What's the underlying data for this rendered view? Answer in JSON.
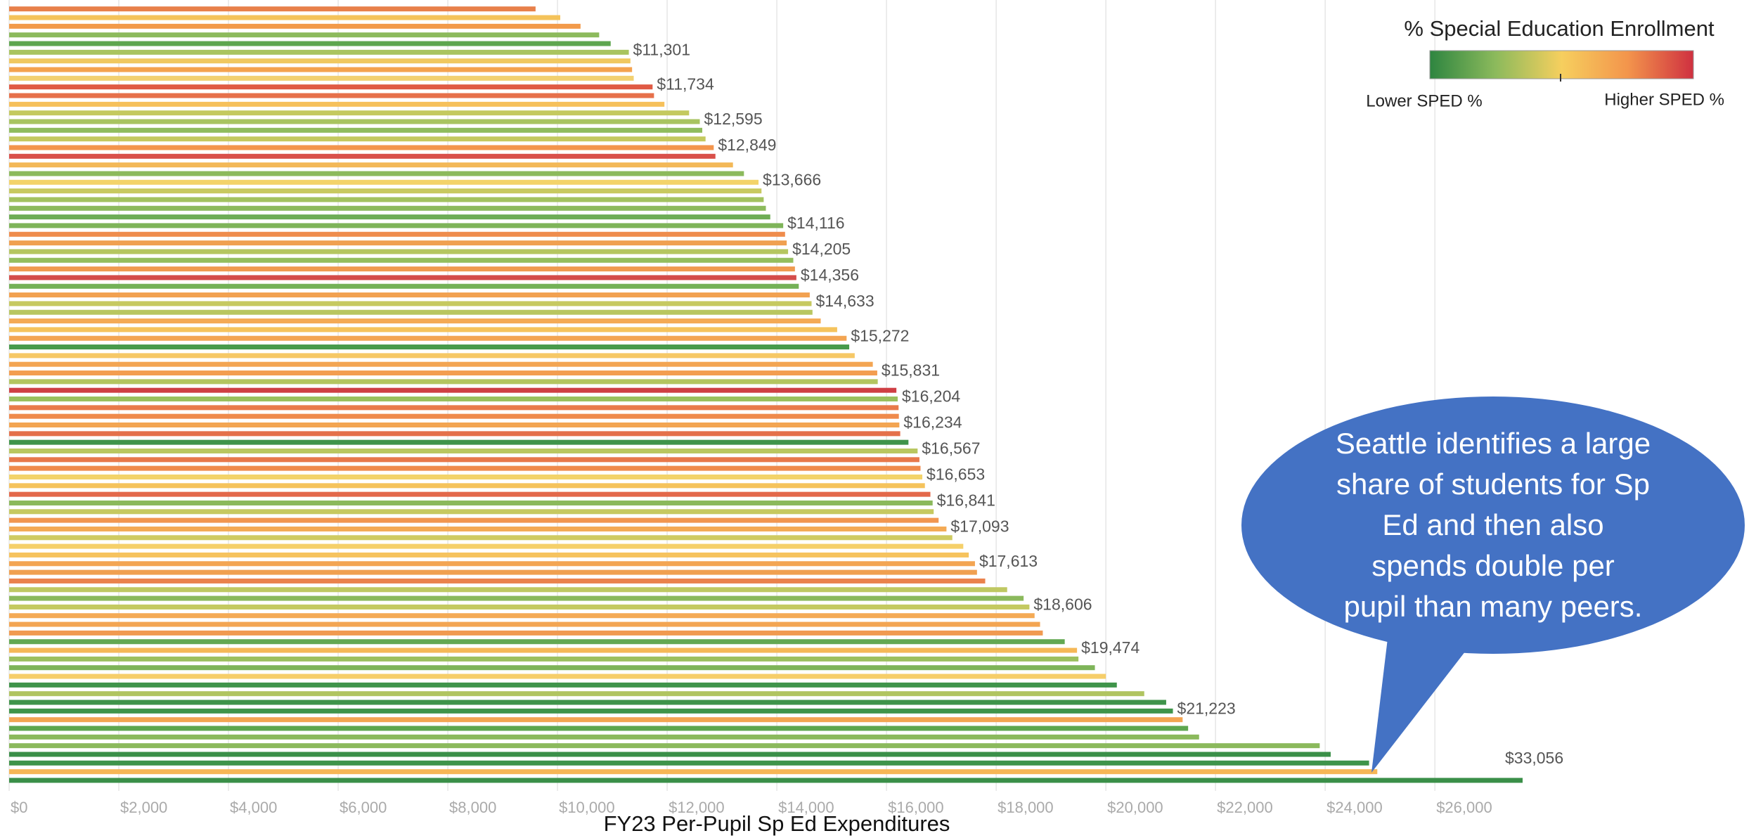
{
  "chart_data": {
    "type": "barh",
    "xlabel": "FY23 Per-Pupil Sp Ed Expenditures",
    "categories": [
      null,
      null,
      null,
      null,
      null,
      null,
      null,
      null,
      null,
      null,
      null,
      null,
      null,
      null,
      null,
      null,
      null,
      null,
      null,
      null,
      null,
      null,
      null,
      null,
      null,
      null,
      null,
      null,
      null,
      null,
      null,
      null,
      null,
      null,
      null,
      null,
      null,
      null,
      null,
      null,
      null,
      null,
      null,
      null,
      null,
      null,
      null,
      null,
      null,
      null,
      null,
      null,
      null,
      null,
      null,
      null,
      null,
      null,
      null,
      null,
      null,
      null,
      null,
      null,
      null,
      null,
      null,
      null,
      null,
      null,
      null,
      null,
      null,
      null,
      null,
      null,
      null,
      null,
      null,
      null,
      null,
      null,
      null,
      null,
      null,
      null,
      null,
      null,
      null,
      null
    ],
    "values": [
      9600,
      10050,
      10420,
      10760,
      10970,
      11301,
      11330,
      11360,
      11390,
      11734,
      11760,
      11950,
      12400,
      12595,
      12640,
      12700,
      12849,
      12880,
      13200,
      13400,
      13666,
      13720,
      13760,
      13800,
      13880,
      14116,
      14150,
      14180,
      14205,
      14300,
      14330,
      14356,
      14400,
      14600,
      14633,
      14650,
      14800,
      15100,
      15272,
      15320,
      15420,
      15750,
      15831,
      15840,
      16180,
      16204,
      16220,
      16225,
      16234,
      16250,
      16400,
      16567,
      16600,
      16620,
      16653,
      16700,
      16800,
      16841,
      16860,
      16950,
      17093,
      17200,
      17400,
      17500,
      17613,
      17650,
      17800,
      18200,
      18500,
      18606,
      18700,
      18800,
      18850,
      19250,
      19474,
      19500,
      19800,
      20000,
      20200,
      20700,
      21100,
      21223,
      21400,
      21500,
      21700,
      23900,
      24100,
      24800,
      24950,
      33056
    ],
    "value_labels": [
      null,
      null,
      null,
      null,
      null,
      "$11,301",
      null,
      null,
      null,
      "$11,734",
      null,
      null,
      null,
      "$12,595",
      null,
      null,
      "$12,849",
      null,
      null,
      null,
      "$13,666",
      null,
      null,
      null,
      null,
      "$14,116",
      null,
      null,
      "$14,205",
      null,
      null,
      "$14,356",
      null,
      null,
      "$14,633",
      null,
      null,
      null,
      "$15,272",
      null,
      null,
      null,
      "$15,831",
      null,
      null,
      "$16,204",
      null,
      null,
      "$16,234",
      null,
      null,
      "$16,567",
      null,
      null,
      "$16,653",
      null,
      null,
      "$16,841",
      null,
      null,
      "$17,093",
      null,
      null,
      null,
      "$17,613",
      null,
      null,
      null,
      null,
      "$18,606",
      null,
      null,
      null,
      null,
      "$19,474",
      null,
      null,
      null,
      null,
      null,
      null,
      "$21,223",
      null,
      null,
      null,
      null,
      null,
      null,
      null,
      "$33,056"
    ],
    "colors": [
      "#e8804a",
      "#f4c35a",
      "#f29a4a",
      "#8cba5c",
      "#5ea64f",
      "#a9c45f",
      "#f0c860",
      "#f4a24e",
      "#f2d070",
      "#e05a44",
      "#e6704a",
      "#f6c05a",
      "#c4c95f",
      "#a8c460",
      "#8fbc5d",
      "#c4c95f",
      "#f3954c",
      "#d9504a",
      "#f3b857",
      "#8cba5c",
      "#f3d36a",
      "#c8c960",
      "#a3c25f",
      "#8cba5c",
      "#6ead55",
      "#7eb459",
      "#ef8c4c",
      "#f0a050",
      "#b5c660",
      "#94be5e",
      "#f09b50",
      "#d44c4a",
      "#74b157",
      "#f2a150",
      "#c6c960",
      "#b8c660",
      "#f4aa55",
      "#f5c35c",
      "#f3a552",
      "#479a4b",
      "#f6c866",
      "#f3a552",
      "#f39d50",
      "#b3c560",
      "#cf3f44",
      "#9ac05e",
      "#e87a4a",
      "#ef8a4c",
      "#f3a552",
      "#e4704a",
      "#3f944a",
      "#b9c760",
      "#e7784a",
      "#ef8a4c",
      "#f3d36a",
      "#f5c35c",
      "#e3684a",
      "#8bb95c",
      "#c6c960",
      "#f19650",
      "#f4aa55",
      "#cfcb62",
      "#f5d06a",
      "#f6c35e",
      "#f3a552",
      "#f0a050",
      "#ea824c",
      "#bfc862",
      "#8bb95c",
      "#c4c960",
      "#f4aa55",
      "#f3a552",
      "#f19a50",
      "#62a852",
      "#f5b857",
      "#9cc05f",
      "#7eb459",
      "#f6ce6a",
      "#3f944a",
      "#b0c460",
      "#3f944a",
      "#3f944a",
      "#f3a552",
      "#5ea64f",
      "#8bb95c",
      "#8bb95c",
      "#3a8f48",
      "#3f944a",
      "#f6b656",
      "#3a8f48"
    ],
    "xlim": [
      0,
      27600
    ],
    "xticks": [
      {
        "value": 0,
        "label": "$0"
      },
      {
        "value": 2000,
        "label": "$2,000"
      },
      {
        "value": 4000,
        "label": "$4,000"
      },
      {
        "value": 6000,
        "label": "$6,000"
      },
      {
        "value": 8000,
        "label": "$8,000"
      },
      {
        "value": 10000,
        "label": "$10,000"
      },
      {
        "value": 12000,
        "label": "$12,000"
      },
      {
        "value": 14000,
        "label": "$14,000"
      },
      {
        "value": 16000,
        "label": "$16,000"
      },
      {
        "value": 18000,
        "label": "$18,000"
      },
      {
        "value": 20000,
        "label": "$20,000"
      },
      {
        "value": 22000,
        "label": "$22,000"
      },
      {
        "value": 24000,
        "label": "$24,000"
      },
      {
        "value": 26000,
        "label": "$26,000"
      }
    ],
    "grid": true,
    "legend": {
      "title": "% Special Education Enrollment",
      "low_label": "Lower SPED %",
      "high_label": "Higher SPED %",
      "colors": [
        "#2e8540",
        "#8cba5c",
        "#f6cf5e",
        "#f3954c",
        "#cf3040"
      ],
      "position": "upper right"
    },
    "annotation": {
      "lines": [
        "Seattle identifies a large",
        "share of students for Sp",
        "Ed and then also",
        "spends double per",
        "pupil than many peers."
      ],
      "color": "#4472c4"
    }
  }
}
